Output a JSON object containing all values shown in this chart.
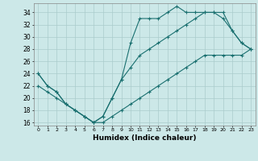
{
  "xlabel": "Humidex (Indice chaleur)",
  "bg_color": "#cce8e8",
  "grid_color": "#aacccc",
  "line_color": "#1a7070",
  "xlim": [
    -0.5,
    23.5
  ],
  "ylim": [
    15.5,
    35.5
  ],
  "xticks": [
    0,
    1,
    2,
    3,
    4,
    5,
    6,
    7,
    8,
    9,
    10,
    11,
    12,
    13,
    14,
    15,
    16,
    17,
    18,
    19,
    20,
    21,
    22,
    23
  ],
  "yticks": [
    16,
    18,
    20,
    22,
    24,
    26,
    28,
    30,
    32,
    34
  ],
  "line1_x": [
    0,
    1,
    2,
    3,
    4,
    5,
    6,
    7,
    8,
    9,
    10,
    11,
    12,
    13,
    14,
    15,
    16,
    17,
    18,
    19,
    20,
    21,
    22,
    23
  ],
  "line1_y": [
    24,
    22,
    21,
    19,
    18,
    17,
    16,
    17,
    20,
    23,
    29,
    33,
    33,
    33,
    34,
    35,
    34,
    34,
    34,
    34,
    34,
    31,
    29,
    28
  ],
  "line2_x": [
    0,
    1,
    2,
    3,
    4,
    5,
    6,
    7,
    8,
    9,
    10,
    11,
    12,
    13,
    14,
    15,
    16,
    17,
    18,
    19,
    20,
    21,
    22,
    23
  ],
  "line2_y": [
    24,
    22,
    21,
    19,
    18,
    17,
    16,
    17,
    20,
    23,
    25,
    27,
    28,
    29,
    30,
    31,
    32,
    33,
    34,
    34,
    33,
    31,
    29,
    28
  ],
  "line3_x": [
    0,
    1,
    2,
    3,
    4,
    5,
    6,
    7,
    8,
    9,
    10,
    11,
    12,
    13,
    14,
    15,
    16,
    17,
    18,
    19,
    20,
    21,
    22,
    23
  ],
  "line3_y": [
    22,
    21,
    20,
    19,
    18,
    17,
    16,
    16,
    17,
    18,
    19,
    20,
    21,
    22,
    23,
    24,
    25,
    26,
    27,
    27,
    27,
    27,
    27,
    28
  ]
}
